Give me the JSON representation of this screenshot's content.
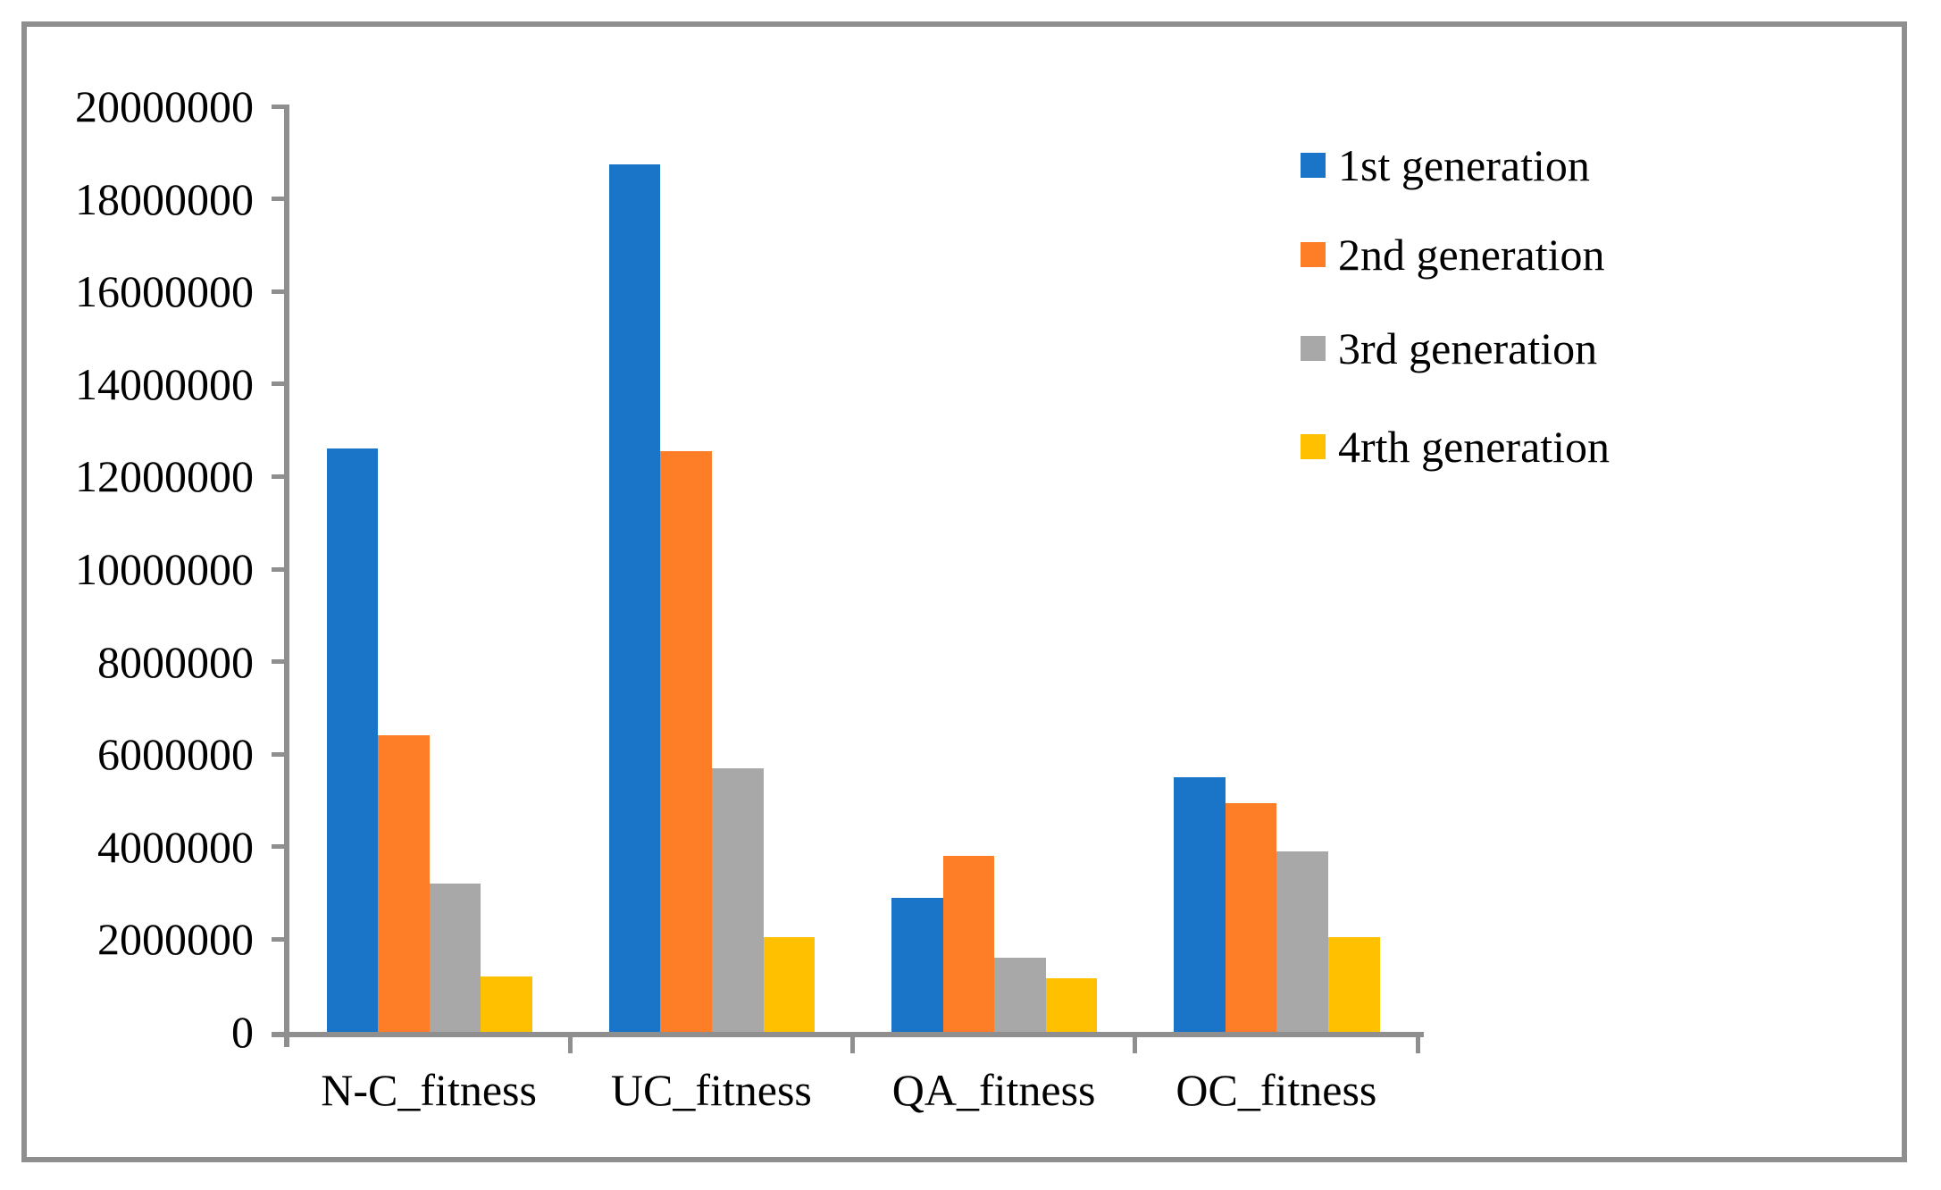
{
  "chart_data": {
    "type": "bar",
    "title": "",
    "xlabel": "",
    "ylabel": "",
    "categories": [
      "N-C_fitness",
      "UC_fitness",
      "QA_fitness",
      "OC_fitness"
    ],
    "series": [
      {
        "name": "1st generation",
        "color": "#1A75C8",
        "values": [
          12600000,
          18750000,
          2900000,
          5500000
        ]
      },
      {
        "name": "2nd generation",
        "color": "#FD7E27",
        "values": [
          6400000,
          12550000,
          3800000,
          4950000
        ]
      },
      {
        "name": "3rd generation",
        "color": "#A8A8A8",
        "values": [
          3200000,
          5700000,
          1600000,
          3900000
        ]
      },
      {
        "name": "4rth generation",
        "color": "#FFC000",
        "values": [
          1200000,
          2050000,
          1150000,
          2050000
        ]
      }
    ],
    "ylim": [
      0,
      20000000
    ],
    "ytick_step": 2000000,
    "ytick_labels": [
      "0",
      "2000000",
      "4000000",
      "6000000",
      "8000000",
      "10000000",
      "12000000",
      "14000000",
      "16000000",
      "18000000",
      "20000000"
    ],
    "grid": false,
    "legend_position": "right",
    "colors": {
      "axis": "#8F8F8F",
      "border": "#8F8F8F",
      "background": "#FFFFFF",
      "text": "#000000"
    }
  }
}
